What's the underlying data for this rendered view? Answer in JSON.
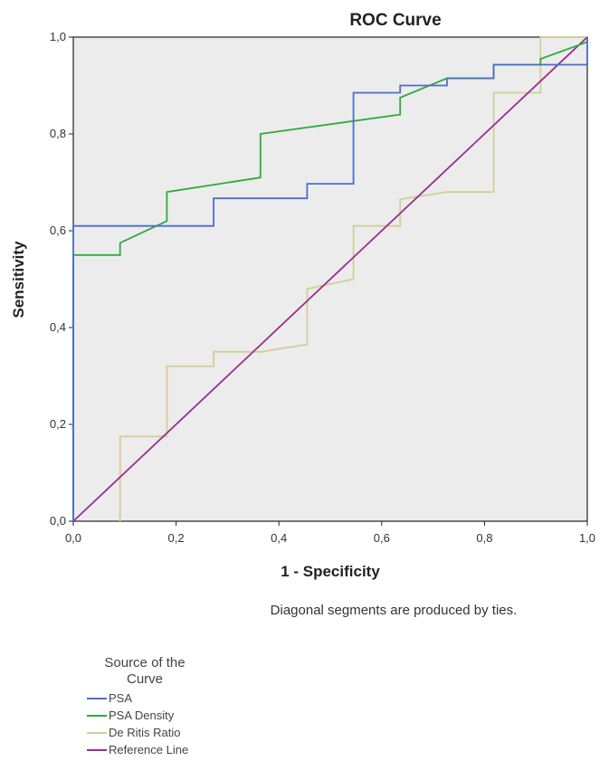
{
  "chart_data": {
    "type": "line",
    "title": "ROC Curve",
    "xlabel": "1 - Specificity",
    "ylabel": "Sensitivity",
    "xlim": [
      0,
      1
    ],
    "ylim": [
      0,
      1
    ],
    "x_ticks": [
      "0,0",
      "0,2",
      "0,4",
      "0,6",
      "0,8",
      "1,0"
    ],
    "y_ticks": [
      "0,0",
      "0,2",
      "0,4",
      "0,6",
      "0,8",
      "1,0"
    ],
    "grid": false,
    "background": "#ececec",
    "note": "Diagonal segments are produced by ties.",
    "legend_title_line1": "Source of the",
    "legend_title_line2": "Curve",
    "legend_position": "bottom-left",
    "series": [
      {
        "name": "PSA",
        "color": "#4a6fc7",
        "points": [
          [
            0,
            0
          ],
          [
            0,
            0.61
          ],
          [
            0.273,
            0.61
          ],
          [
            0.273,
            0.667
          ],
          [
            0.455,
            0.667
          ],
          [
            0.455,
            0.697
          ],
          [
            0.545,
            0.697
          ],
          [
            0.545,
            0.885
          ],
          [
            0.636,
            0.885
          ],
          [
            0.636,
            0.9
          ],
          [
            0.727,
            0.9
          ],
          [
            0.727,
            0.915
          ],
          [
            0.818,
            0.915
          ],
          [
            0.818,
            0.943
          ],
          [
            1.0,
            0.943
          ],
          [
            1.0,
            1.0
          ]
        ]
      },
      {
        "name": "PSA Density",
        "color": "#2eaa3e",
        "points": [
          [
            0,
            0
          ],
          [
            0,
            0.55
          ],
          [
            0.091,
            0.55
          ],
          [
            0.091,
            0.575
          ],
          [
            0.182,
            0.62
          ],
          [
            0.182,
            0.68
          ],
          [
            0.364,
            0.71
          ],
          [
            0.364,
            0.8
          ],
          [
            0.636,
            0.84
          ],
          [
            0.636,
            0.875
          ],
          [
            0.727,
            0.915
          ],
          [
            0.818,
            0.915
          ],
          [
            0.818,
            0.943
          ],
          [
            0.909,
            0.943
          ],
          [
            0.909,
            0.955
          ],
          [
            1.0,
            0.99
          ]
        ]
      },
      {
        "name": "De Ritis Ratio",
        "color": "#cfcf98",
        "points": [
          [
            0.091,
            0
          ],
          [
            0.091,
            0.175
          ],
          [
            0.182,
            0.175
          ],
          [
            0.182,
            0.32
          ],
          [
            0.273,
            0.32
          ],
          [
            0.273,
            0.35
          ],
          [
            0.364,
            0.35
          ],
          [
            0.455,
            0.365
          ],
          [
            0.455,
            0.48
          ],
          [
            0.545,
            0.5
          ],
          [
            0.545,
            0.61
          ],
          [
            0.636,
            0.61
          ],
          [
            0.636,
            0.665
          ],
          [
            0.727,
            0.68
          ],
          [
            0.818,
            0.68
          ],
          [
            0.818,
            0.885
          ],
          [
            0.909,
            0.885
          ],
          [
            0.909,
            1.0
          ],
          [
            1.0,
            1.0
          ]
        ]
      },
      {
        "name": "Reference Line",
        "color": "#9b2d8e",
        "points": [
          [
            0,
            0
          ],
          [
            1,
            1
          ]
        ]
      }
    ]
  }
}
